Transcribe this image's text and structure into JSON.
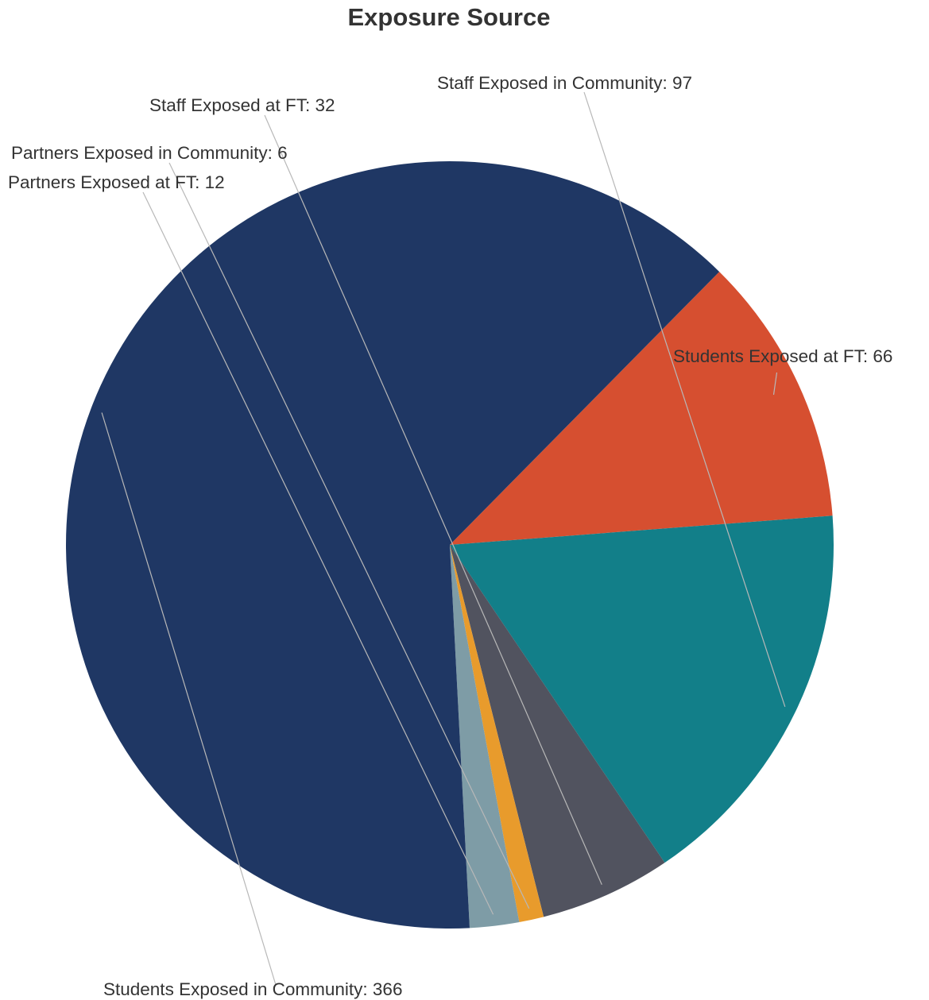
{
  "chart_data": {
    "type": "pie",
    "title": "Exposure Source",
    "slices": [
      {
        "label": "Students Exposed at FT",
        "value": 66,
        "color": "#d64f30"
      },
      {
        "label": "Staff Exposed in Community",
        "value": 97,
        "color": "#127f89"
      },
      {
        "label": "Staff Exposed at FT",
        "value": 32,
        "color": "#51535f"
      },
      {
        "label": "Partners Exposed in Community",
        "value": 6,
        "color": "#e89b2c"
      },
      {
        "label": "Partners Exposed at FT",
        "value": 12,
        "color": "#7e9ca6"
      },
      {
        "label": "Students Exposed in Community",
        "value": 366,
        "color": "#1f3764"
      }
    ],
    "label_format": "{label}: {value}",
    "legend": "none"
  }
}
